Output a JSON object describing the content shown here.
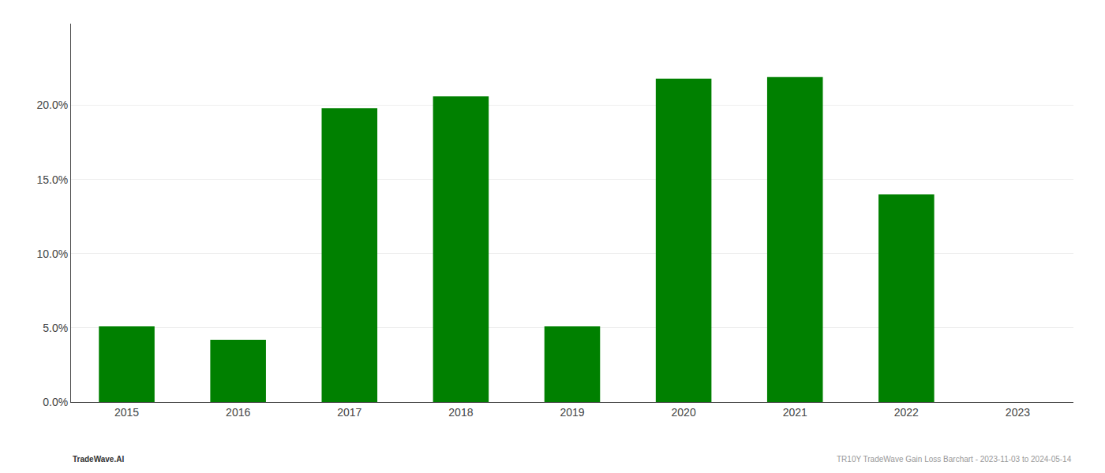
{
  "chart_data": {
    "type": "bar",
    "categories": [
      "2015",
      "2016",
      "2017",
      "2018",
      "2019",
      "2020",
      "2021",
      "2022",
      "2023"
    ],
    "values": [
      0.051,
      0.042,
      0.198,
      0.206,
      0.051,
      0.218,
      0.219,
      0.14,
      0.0
    ],
    "color": "#008000",
    "ylim": [
      0,
      0.255
    ],
    "yticks": [
      {
        "value": 0.0,
        "label": "0.0%"
      },
      {
        "value": 0.05,
        "label": "5.0%"
      },
      {
        "value": 0.1,
        "label": "10.0%"
      },
      {
        "value": 0.15,
        "label": "15.0%"
      },
      {
        "value": 0.2,
        "label": "20.0%"
      }
    ],
    "grid": true,
    "annotations": [
      "TradeWave.AI",
      "TR10Y TradeWave Gain Loss Barchart - 2023-11-03 to 2024-05-14"
    ]
  }
}
